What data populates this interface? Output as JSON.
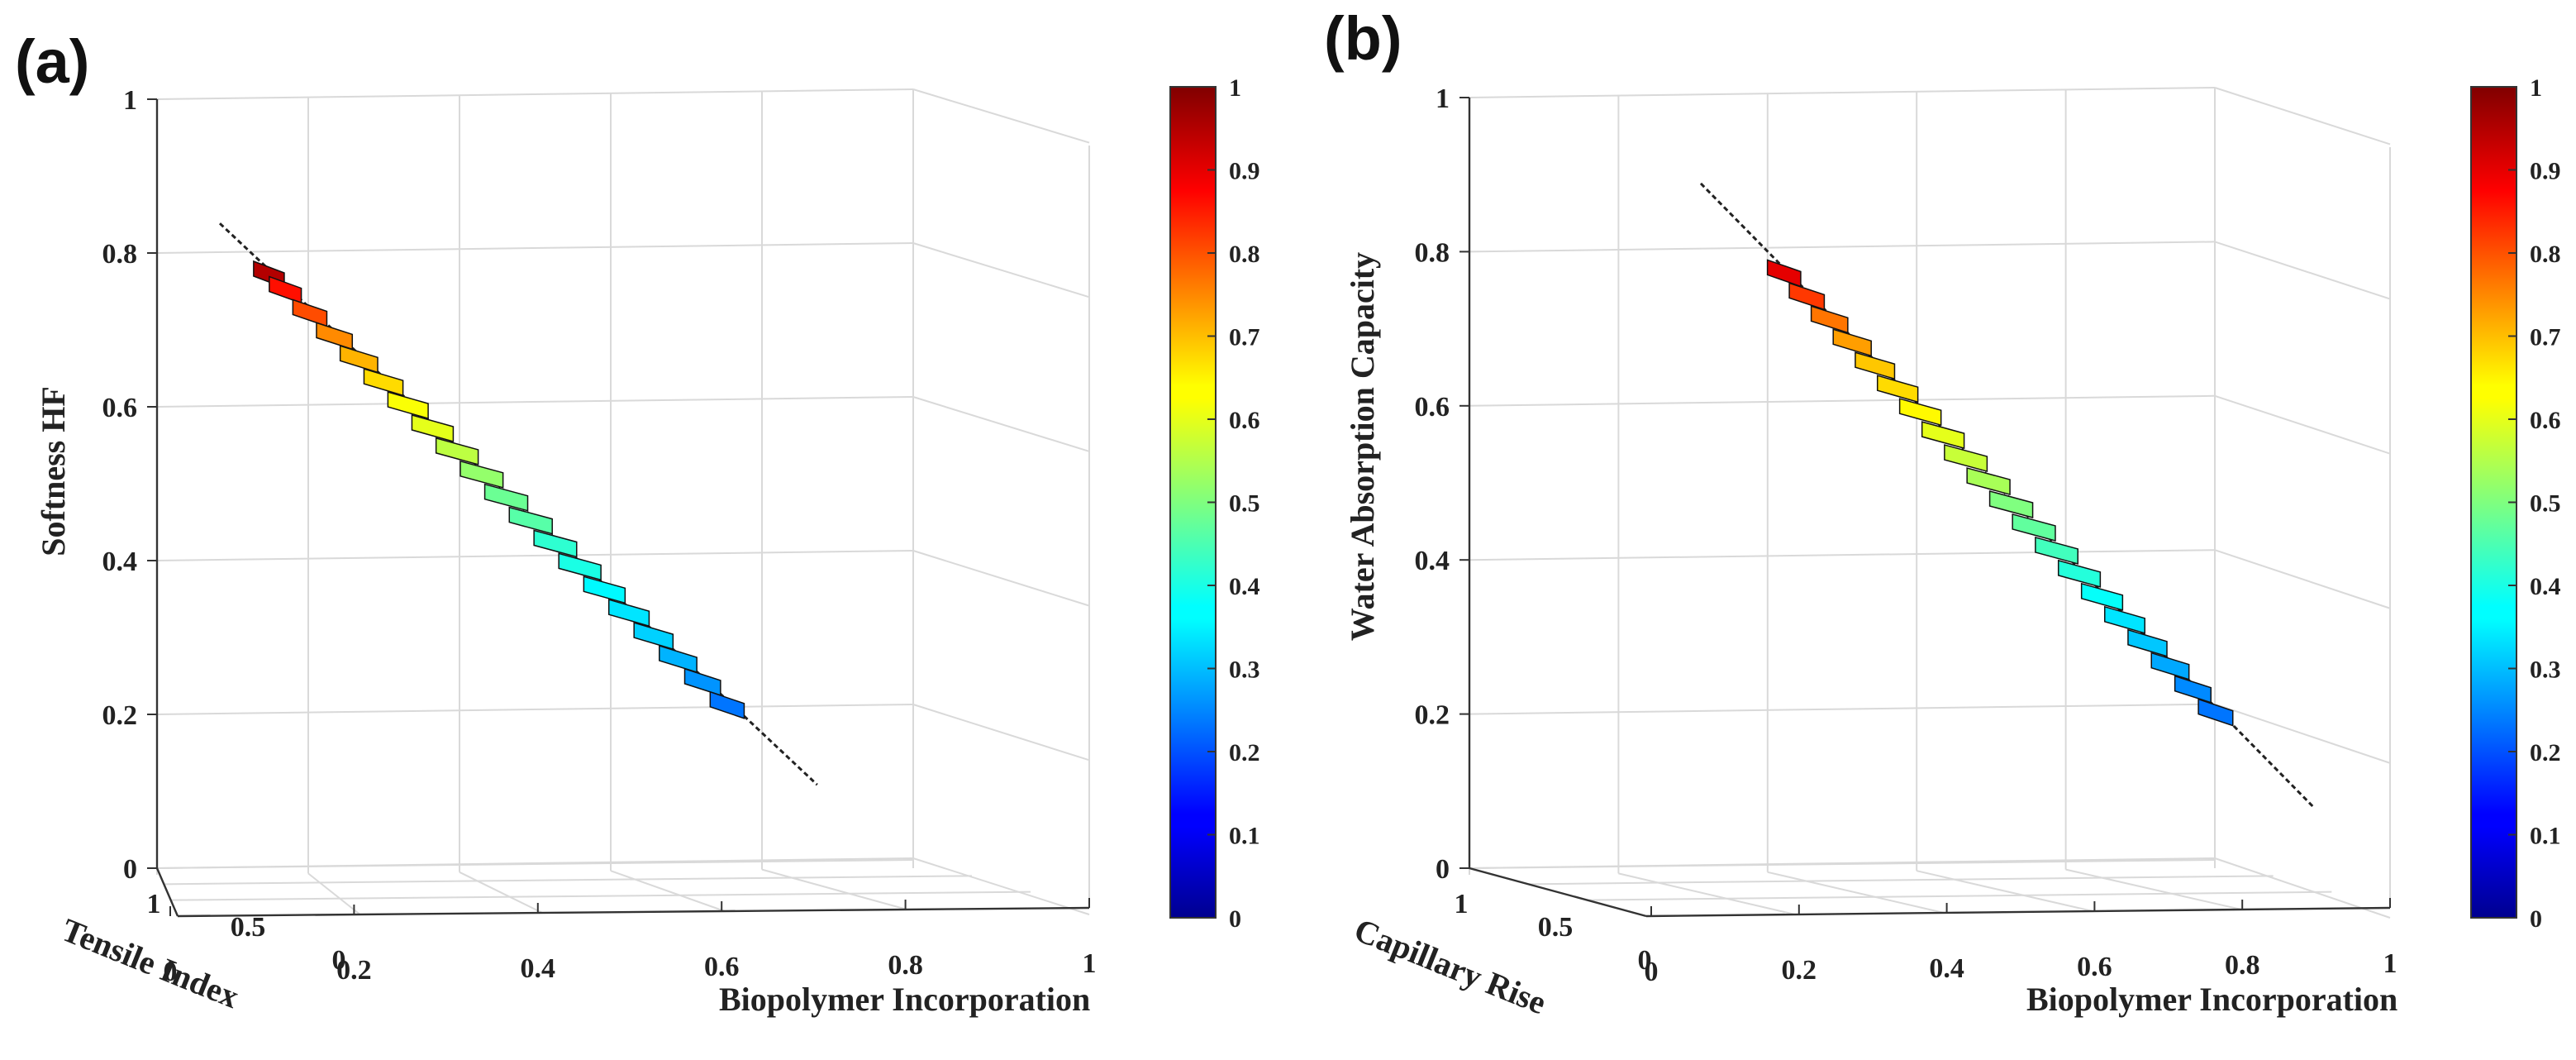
{
  "chart_data": [
    {
      "type": "surface3d",
      "panel": "(a)",
      "xlabel": "Biopolymer Incorporation",
      "ylabel": "Tensile Index",
      "zlabel": "Softness HF",
      "x_ticks": [
        "0",
        "0.2",
        "0.4",
        "0.6",
        "0.8",
        "1"
      ],
      "y_ticks": [
        "0",
        "0.5",
        "1"
      ],
      "z_ticks": [
        "0",
        "0.2",
        "0.4",
        "0.6",
        "0.8",
        "1"
      ],
      "xlim": [
        0,
        1
      ],
      "ylim": [
        0,
        1
      ],
      "zlim": [
        0,
        1
      ],
      "colorbar_ticks": [
        "0",
        "0.1",
        "0.2",
        "0.3",
        "0.4",
        "0.5",
        "0.6",
        "0.7",
        "0.8",
        "0.9",
        "1"
      ],
      "colormap": "jet",
      "grid": true,
      "line_start": {
        "x": 0.0,
        "z": 0.86
      },
      "line_end": {
        "x": 0.65,
        "z": 0.13
      },
      "colored_range": {
        "start_z": 0.8,
        "end_z": 0.24
      },
      "colored_segments": [
        {
          "z": 0.8,
          "color_value": 0.95
        },
        {
          "z": 0.78,
          "color_value": 0.86
        },
        {
          "z": 0.75,
          "color_value": 0.8
        },
        {
          "z": 0.72,
          "color_value": 0.74
        },
        {
          "z": 0.69,
          "color_value": 0.7
        },
        {
          "z": 0.66,
          "color_value": 0.66
        },
        {
          "z": 0.63,
          "color_value": 0.62
        },
        {
          "z": 0.6,
          "color_value": 0.6
        },
        {
          "z": 0.57,
          "color_value": 0.56
        },
        {
          "z": 0.54,
          "color_value": 0.52
        },
        {
          "z": 0.51,
          "color_value": 0.48
        },
        {
          "z": 0.48,
          "color_value": 0.46
        },
        {
          "z": 0.45,
          "color_value": 0.42
        },
        {
          "z": 0.42,
          "color_value": 0.4
        },
        {
          "z": 0.39,
          "color_value": 0.37
        },
        {
          "z": 0.36,
          "color_value": 0.35
        },
        {
          "z": 0.33,
          "color_value": 0.33
        },
        {
          "z": 0.3,
          "color_value": 0.3
        },
        {
          "z": 0.27,
          "color_value": 0.27
        },
        {
          "z": 0.24,
          "color_value": 0.24
        }
      ]
    },
    {
      "type": "surface3d",
      "panel": "(b)",
      "xlabel": "Biopolymer Incorporation",
      "ylabel": "Capillary Rise",
      "zlabel": "Water Absorption Capacity",
      "x_ticks": [
        "0",
        "0.2",
        "0.4",
        "0.6",
        "0.8",
        "1"
      ],
      "y_ticks": [
        "0",
        "0.5",
        "1"
      ],
      "z_ticks": [
        "0",
        "0.2",
        "0.4",
        "0.6",
        "0.8",
        "1"
      ],
      "xlim": [
        0,
        1
      ],
      "ylim": [
        0,
        1
      ],
      "zlim": [
        0,
        1
      ],
      "colorbar_ticks": [
        "0",
        "0.1",
        "0.2",
        "0.3",
        "0.4",
        "0.5",
        "0.6",
        "0.7",
        "0.8",
        "0.9",
        "1"
      ],
      "colormap": "jet",
      "grid": true,
      "line_start": {
        "x": 0.0,
        "z": 0.91
      },
      "line_end": {
        "x": 0.83,
        "z": 0.1
      },
      "colored_range": {
        "start_z": 0.8,
        "end_z": 0.23
      },
      "colored_segments": [
        {
          "z": 0.8,
          "color_value": 0.9
        },
        {
          "z": 0.77,
          "color_value": 0.82
        },
        {
          "z": 0.74,
          "color_value": 0.76
        },
        {
          "z": 0.71,
          "color_value": 0.72
        },
        {
          "z": 0.68,
          "color_value": 0.68
        },
        {
          "z": 0.65,
          "color_value": 0.66
        },
        {
          "z": 0.62,
          "color_value": 0.63
        },
        {
          "z": 0.59,
          "color_value": 0.6
        },
        {
          "z": 0.56,
          "color_value": 0.57
        },
        {
          "z": 0.53,
          "color_value": 0.54
        },
        {
          "z": 0.5,
          "color_value": 0.5
        },
        {
          "z": 0.47,
          "color_value": 0.47
        },
        {
          "z": 0.44,
          "color_value": 0.44
        },
        {
          "z": 0.41,
          "color_value": 0.41
        },
        {
          "z": 0.38,
          "color_value": 0.38
        },
        {
          "z": 0.35,
          "color_value": 0.35
        },
        {
          "z": 0.32,
          "color_value": 0.32
        },
        {
          "z": 0.29,
          "color_value": 0.29
        },
        {
          "z": 0.26,
          "color_value": 0.26
        },
        {
          "z": 0.23,
          "color_value": 0.24
        }
      ]
    }
  ]
}
